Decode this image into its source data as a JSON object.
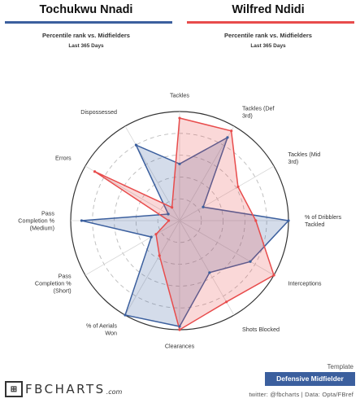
{
  "players": [
    {
      "name": "Tochukwu Nnadi",
      "subtitle": "Percentile rank vs. Midfielders",
      "period": "Last 365 Days",
      "color": "#3b5f9e"
    },
    {
      "name": "Wilfred Ndidi",
      "subtitle": "Percentile rank vs. Midfielders",
      "period": "Last 365 Days",
      "color": "#e84c4c"
    }
  ],
  "chart_data": {
    "type": "radar",
    "categories": [
      "Tackles",
      "Tackles (Def\n3rd)",
      "Tackles (Mid\n3rd)",
      "% of Dribblers\nTackled",
      "Interceptions",
      "Shots Blocked",
      "Clearances",
      "% of Aerials\nWon",
      "Pass\nCompletion %\n(Short)",
      "Pass\nCompletion %\n(Medium)",
      "Errors",
      "Dispossessed"
    ],
    "range": [
      0,
      100
    ],
    "grid_rings": [
      20,
      40,
      60,
      80,
      100
    ],
    "series": [
      {
        "name": "Tochukwu Nnadi",
        "values": [
          52,
          88,
          25,
          100,
          75,
          55,
          97,
          100,
          30,
          90,
          12,
          80
        ]
      },
      {
        "name": "Wilfred Ndidi",
        "values": [
          94,
          95,
          62,
          70,
          100,
          86,
          100,
          37,
          25,
          10,
          90,
          14
        ]
      }
    ]
  },
  "footer": {
    "template_label": "Template",
    "template_name": "Defensive Midfielder",
    "logo_text": "FBCHARTS",
    "logo_suffix": ".com",
    "credit": "twitter: @fbcharts  |  Data: Opta/FBref"
  },
  "colors": {
    "badge": "#3b5f9e"
  }
}
